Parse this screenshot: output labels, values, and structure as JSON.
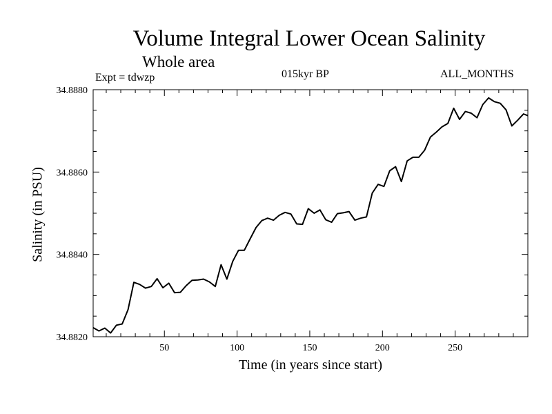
{
  "chart_data": {
    "type": "line",
    "title": "Volume Integral Lower Ocean Salinity",
    "subtitle": "Whole area",
    "annotations": {
      "left": "Expt = tdwzp",
      "center": "015kyr BP",
      "right": "ALL_MONTHS"
    },
    "xlabel": "Time (in years since start)",
    "ylabel": "Salinity (in PSU)",
    "xlim": [
      1,
      300
    ],
    "ylim": [
      34.882,
      34.888
    ],
    "xticks": [
      50,
      100,
      150,
      200,
      250
    ],
    "xtick_labels": [
      "50",
      "100",
      "150",
      "200",
      "250"
    ],
    "yticks": [
      34.882,
      34.884,
      34.886,
      34.888
    ],
    "ytick_labels": [
      "34.8820",
      "34.8840",
      "34.8860",
      "34.8880"
    ],
    "grid": false,
    "series": [
      {
        "values": [
          [
            1,
            34.88222
          ],
          [
            5,
            34.88214
          ],
          [
            9,
            34.88221
          ],
          [
            13,
            34.88209
          ],
          [
            17,
            34.88228
          ],
          [
            21,
            34.88231
          ],
          [
            25,
            34.88266
          ],
          [
            29,
            34.88332
          ],
          [
            33,
            34.88327
          ],
          [
            37,
            34.88318
          ],
          [
            41,
            34.88322
          ],
          [
            45,
            34.88341
          ],
          [
            49,
            34.88319
          ],
          [
            53,
            34.8833
          ],
          [
            57,
            34.88307
          ],
          [
            61,
            34.88308
          ],
          [
            65,
            34.88324
          ],
          [
            69,
            34.88337
          ],
          [
            73,
            34.88338
          ],
          [
            77,
            34.8834
          ],
          [
            81,
            34.88333
          ],
          [
            85,
            34.88322
          ],
          [
            89,
            34.88375
          ],
          [
            93,
            34.8834
          ],
          [
            97,
            34.88383
          ],
          [
            101,
            34.8841
          ],
          [
            105,
            34.8841
          ],
          [
            109,
            34.88438
          ],
          [
            113,
            34.88465
          ],
          [
            117,
            34.88482
          ],
          [
            121,
            34.88488
          ],
          [
            125,
            34.88483
          ],
          [
            129,
            34.88495
          ],
          [
            133,
            34.88502
          ],
          [
            137,
            34.88498
          ],
          [
            141,
            34.88474
          ],
          [
            145,
            34.88473
          ],
          [
            149,
            34.88511
          ],
          [
            153,
            34.885
          ],
          [
            157,
            34.88508
          ],
          [
            161,
            34.88484
          ],
          [
            165,
            34.88478
          ],
          [
            169,
            34.88499
          ],
          [
            173,
            34.88501
          ],
          [
            177,
            34.88504
          ],
          [
            181,
            34.88483
          ],
          [
            185,
            34.88488
          ],
          [
            189,
            34.88491
          ],
          [
            193,
            34.88549
          ],
          [
            197,
            34.8857
          ],
          [
            201,
            34.88565
          ],
          [
            205,
            34.88603
          ],
          [
            209,
            34.88613
          ],
          [
            213,
            34.88577
          ],
          [
            217,
            34.88627
          ],
          [
            221,
            34.88636
          ],
          [
            225,
            34.88636
          ],
          [
            229,
            34.88653
          ],
          [
            233,
            34.88685
          ],
          [
            237,
            34.88697
          ],
          [
            241,
            34.8871
          ],
          [
            245,
            34.88718
          ],
          [
            249,
            34.88755
          ],
          [
            253,
            34.88728
          ],
          [
            257,
            34.88747
          ],
          [
            261,
            34.88743
          ],
          [
            265,
            34.88732
          ],
          [
            269,
            34.88764
          ],
          [
            273,
            34.8878
          ],
          [
            277,
            34.88771
          ],
          [
            281,
            34.88767
          ],
          [
            285,
            34.88751
          ],
          [
            289,
            34.88712
          ],
          [
            293,
            34.88726
          ],
          [
            297,
            34.88741
          ],
          [
            300,
            34.88737
          ]
        ]
      }
    ]
  }
}
